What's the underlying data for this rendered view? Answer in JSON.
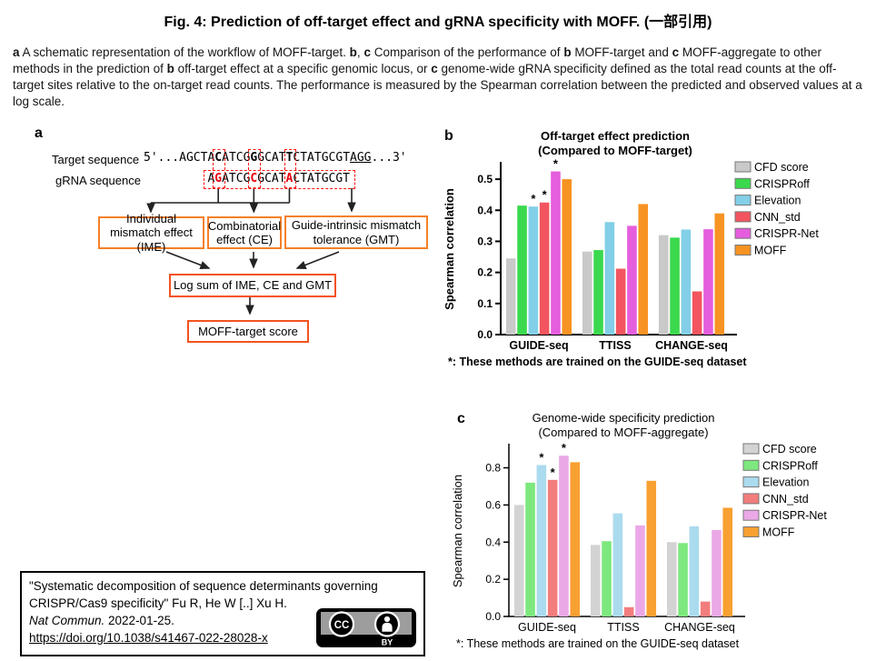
{
  "page": {
    "title": "Fig. 4: Prediction of off-target effect and gRNA specificity with MOFF. (一部引用)",
    "background": "#ffffff"
  },
  "caption": {
    "segments": [
      {
        "t": "a",
        "b": true
      },
      {
        "t": " A schematic representation of the workflow of MOFF-target. "
      },
      {
        "t": "b",
        "b": true
      },
      {
        "t": ", "
      },
      {
        "t": "c",
        "b": true
      },
      {
        "t": " Comparison of the performance of "
      },
      {
        "t": "b",
        "b": true
      },
      {
        "t": " MOFF-target and "
      },
      {
        "t": "c",
        "b": true
      },
      {
        "t": " MOFF-aggregate to other methods in the prediction of "
      },
      {
        "t": "b",
        "b": true
      },
      {
        "t": " off-target effect at a specific genomic locus, or "
      },
      {
        "t": "c",
        "b": true
      },
      {
        "t": " genome-wide gRNA specificity defined as the total read counts at the off-target sites relative to the on-target read counts. The performance is measured by the Spearman correlation between the predicted and observed values at a log scale."
      }
    ]
  },
  "panel_a": {
    "label": "a",
    "target_label": "Target sequence",
    "grna_label": "gRNA sequence",
    "sequence": {
      "prefix": "5'...",
      "pre_aligned": "AGCT",
      "aligned": "ACATCGGGCATTCTATGCGT",
      "pam": "AGG",
      "suffix": "...3'",
      "grna": "AGATCGCGCATACTATGCGT",
      "mismatch_indices": [
        1,
        6,
        11
      ],
      "mismatch_color": "#e8000d",
      "dash_color": "#ff1513"
    },
    "boxes": {
      "ime": "Individual mismatch effect (IME)",
      "ce": "Combinatorial effect (CE)",
      "gmt": "Guide-intrinsic mismatch tolerance (GMT)",
      "logsum": "Log sum of IME, CE and GMT",
      "score": "MOFF-target score",
      "border_color_top": "#f58027",
      "border_color_bottom": "#f4531f"
    }
  },
  "chart_data": [
    {
      "id": "chart-b",
      "panel_label": "b",
      "type": "bar",
      "title": "Off-target effect prediction",
      "subtitle": "(Compared to MOFF-target)",
      "ylabel": "Spearman correlation",
      "categories": [
        "GUIDE-seq",
        "TTISS",
        "CHANGE-seq"
      ],
      "series": [
        {
          "name": "CFD score",
          "color": "#c9c9c9",
          "values": [
            0.245,
            0.267,
            0.32
          ]
        },
        {
          "name": "CRISPRoff",
          "color": "#3bd94e",
          "values": [
            0.415,
            0.272,
            0.312
          ]
        },
        {
          "name": "Elevation",
          "color": "#82cfe7",
          "values": [
            0.412,
            0.362,
            0.338
          ]
        },
        {
          "name": "CNN_std",
          "color": "#f2555f",
          "values": [
            0.425,
            0.212,
            0.139
          ]
        },
        {
          "name": "CRISPR-Net",
          "color": "#e55edd",
          "values": [
            0.525,
            0.35,
            0.339
          ]
        },
        {
          "name": "MOFF",
          "color": "#f79323",
          "values": [
            0.5,
            0.42,
            0.39
          ]
        }
      ],
      "ylim": [
        0,
        0.55
      ],
      "yticks": [
        0.0,
        0.1,
        0.2,
        0.3,
        0.4,
        0.5
      ],
      "asterisks": [
        [
          0,
          2
        ],
        [
          0,
          3
        ],
        [
          0,
          4
        ]
      ],
      "footnote": "*: These methods are trained on the GUIDE-seq dataset",
      "bold_labels": true,
      "grid": false,
      "legend_position": "right"
    },
    {
      "id": "chart-c",
      "panel_label": "c",
      "type": "bar",
      "title": "Genome-wide specificity prediction",
      "subtitle": "(Compared to MOFF-aggregate)",
      "ylabel": "Spearman correlation",
      "categories": [
        "GUIDE-seq",
        "TTISS",
        "CHANGE-seq"
      ],
      "series": [
        {
          "name": "CFD score",
          "color": "#d3d3d3",
          "values": [
            0.6,
            0.385,
            0.4
          ]
        },
        {
          "name": "CRISPRoff",
          "color": "#7de87d",
          "values": [
            0.72,
            0.405,
            0.395
          ]
        },
        {
          "name": "Elevation",
          "color": "#abdbee",
          "values": [
            0.815,
            0.555,
            0.485
          ]
        },
        {
          "name": "CNN_std",
          "color": "#f37d7d",
          "values": [
            0.735,
            0.05,
            0.08
          ]
        },
        {
          "name": "CRISPR-Net",
          "color": "#eba8e6",
          "values": [
            0.865,
            0.49,
            0.465
          ]
        },
        {
          "name": "MOFF",
          "color": "#f8a032",
          "values": [
            0.83,
            0.73,
            0.585
          ]
        }
      ],
      "ylim": [
        0,
        0.92
      ],
      "yticks": [
        0.0,
        0.2,
        0.4,
        0.6,
        0.8
      ],
      "asterisks": [
        [
          0,
          2
        ],
        [
          0,
          3
        ],
        [
          0,
          4
        ]
      ],
      "footnote": "*: These methods are trained on the GUIDE-seq dataset",
      "bold_labels": false,
      "grid": false,
      "legend_position": "right"
    }
  ],
  "citation": {
    "title_authors": "\"Systematic decomposition of sequence determinants governing CRISPR/Cas9 specificity\" Fu R, He W [..] Xu H.",
    "journal_segments": [
      {
        "t": "Nat Commun.",
        "i": true
      },
      {
        "t": " 2022-01-25.",
        "i": false
      }
    ],
    "doi": "https://doi.org/10.1038/s41467-022-28028-x",
    "license": {
      "cc": "CC",
      "by": "BY"
    }
  }
}
